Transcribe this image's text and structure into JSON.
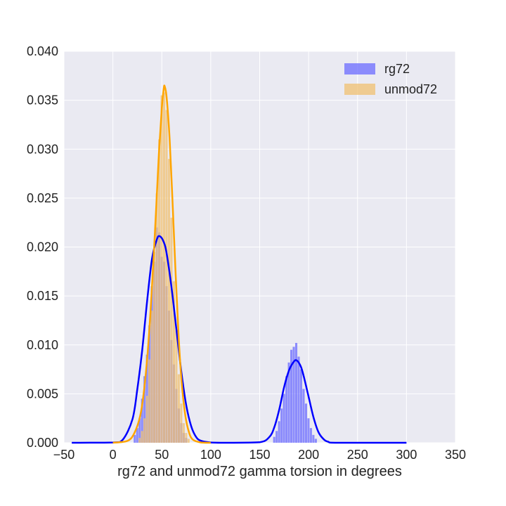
{
  "chart_data": {
    "type": "histogram",
    "title": "",
    "xlabel": "rg72 and unmod72 gamma torsion in degrees",
    "ylabel": "",
    "xlim": [
      -50,
      350
    ],
    "ylim": [
      0,
      0.04
    ],
    "x_ticks": [
      "−50",
      "0",
      "50",
      "100",
      "150",
      "200",
      "250",
      "300",
      "350"
    ],
    "x_tick_values": [
      -50,
      0,
      50,
      100,
      150,
      200,
      250,
      300,
      350
    ],
    "y_ticks": [
      "0.000",
      "0.005",
      "0.010",
      "0.015",
      "0.020",
      "0.025",
      "0.030",
      "0.035",
      "0.040"
    ],
    "y_tick_values": [
      0,
      0.005,
      0.01,
      0.015,
      0.02,
      0.025,
      0.03,
      0.035,
      0.04
    ],
    "grid": true,
    "legend_position": "top-right",
    "bin_width": 2.5,
    "series": [
      {
        "name": "rg72",
        "color": "#0000ff",
        "fill_color": "#6b6bff",
        "bins": [
          [
            22.5,
            0.0008
          ],
          [
            25,
            0.0015
          ],
          [
            27.5,
            0.0025
          ],
          [
            30,
            0.0045
          ],
          [
            32.5,
            0.0068
          ],
          [
            35,
            0.009
          ],
          [
            37.5,
            0.012
          ],
          [
            40,
            0.016
          ],
          [
            42.5,
            0.0185
          ],
          [
            45,
            0.022
          ],
          [
            47.5,
            0.0215
          ],
          [
            50,
            0.019
          ],
          [
            52.5,
            0.0185
          ],
          [
            55,
            0.016
          ],
          [
            57.5,
            0.0135
          ],
          [
            60,
            0.0105
          ],
          [
            62.5,
            0.008
          ],
          [
            65,
            0.0055
          ],
          [
            67.5,
            0.0035
          ],
          [
            70,
            0.002
          ],
          [
            72.5,
            0.001
          ],
          [
            75,
            0.0005
          ],
          [
            165,
            0.0006
          ],
          [
            167.5,
            0.0012
          ],
          [
            170,
            0.0022
          ],
          [
            172.5,
            0.0035
          ],
          [
            175,
            0.005
          ],
          [
            177.5,
            0.0068
          ],
          [
            180,
            0.0082
          ],
          [
            182.5,
            0.0095
          ],
          [
            185,
            0.0098
          ],
          [
            187.5,
            0.0102
          ],
          [
            190,
            0.0088
          ],
          [
            192.5,
            0.0075
          ],
          [
            195,
            0.0055
          ],
          [
            197.5,
            0.004
          ],
          [
            200,
            0.0025
          ],
          [
            202.5,
            0.0015
          ],
          [
            205,
            0.0008
          ],
          [
            207.5,
            0.0004
          ]
        ],
        "kde": [
          [
            -42,
            0
          ],
          [
            0,
            3e-05
          ],
          [
            10,
            0.0003
          ],
          [
            20,
            0.0024
          ],
          [
            25,
            0.0055
          ],
          [
            30,
            0.0095
          ],
          [
            35,
            0.0145
          ],
          [
            40,
            0.0188
          ],
          [
            45,
            0.0208
          ],
          [
            48,
            0.0211
          ],
          [
            52,
            0.0205
          ],
          [
            55,
            0.0193
          ],
          [
            60,
            0.0158
          ],
          [
            65,
            0.0115
          ],
          [
            70,
            0.0072
          ],
          [
            75,
            0.0038
          ],
          [
            80,
            0.0017
          ],
          [
            85,
            0.0006
          ],
          [
            90,
            0.0002
          ],
          [
            100,
            3e-05
          ],
          [
            120,
            0
          ],
          [
            150,
            5e-05
          ],
          [
            160,
            0.0006
          ],
          [
            165,
            0.0016
          ],
          [
            170,
            0.0034
          ],
          [
            175,
            0.0057
          ],
          [
            180,
            0.0074
          ],
          [
            185,
            0.0083
          ],
          [
            188,
            0.0084
          ],
          [
            192,
            0.0078
          ],
          [
            195,
            0.0068
          ],
          [
            200,
            0.0047
          ],
          [
            205,
            0.0026
          ],
          [
            210,
            0.0011
          ],
          [
            215,
            0.0004
          ],
          [
            220,
            0.0001
          ],
          [
            230,
            0
          ],
          [
            300,
            0
          ]
        ]
      },
      {
        "name": "unmod72",
        "color": "#ffa500",
        "fill_color": "#f0c070",
        "bins": [
          [
            27.5,
            0.0005
          ],
          [
            30,
            0.0012
          ],
          [
            32.5,
            0.0025
          ],
          [
            35,
            0.0048
          ],
          [
            37.5,
            0.0085
          ],
          [
            40,
            0.0135
          ],
          [
            42.5,
            0.0195
          ],
          [
            45,
            0.0255
          ],
          [
            47.5,
            0.031
          ],
          [
            50,
            0.0355
          ],
          [
            52.5,
            0.0358
          ],
          [
            55,
            0.034
          ],
          [
            57.5,
            0.029
          ],
          [
            60,
            0.023
          ],
          [
            62.5,
            0.0165
          ],
          [
            65,
            0.0115
          ],
          [
            67.5,
            0.007
          ],
          [
            70,
            0.004
          ],
          [
            72.5,
            0.002
          ],
          [
            75,
            0.001
          ],
          [
            77.5,
            0.0004
          ]
        ],
        "kde": [
          [
            0,
            0
          ],
          [
            15,
            0.0002
          ],
          [
            22,
            0.001
          ],
          [
            28,
            0.0028
          ],
          [
            32,
            0.0055
          ],
          [
            36,
            0.0098
          ],
          [
            40,
            0.016
          ],
          [
            44,
            0.0235
          ],
          [
            47,
            0.0295
          ],
          [
            50,
            0.0342
          ],
          [
            52,
            0.0362
          ],
          [
            53,
            0.0364
          ],
          [
            55,
            0.0352
          ],
          [
            58,
            0.031
          ],
          [
            61,
            0.0245
          ],
          [
            64,
            0.0175
          ],
          [
            67,
            0.0112
          ],
          [
            70,
            0.0065
          ],
          [
            74,
            0.0028
          ],
          [
            78,
            0.001
          ],
          [
            82,
            0.0003
          ],
          [
            90,
            3e-05
          ],
          [
            100,
            0
          ]
        ]
      }
    ]
  }
}
